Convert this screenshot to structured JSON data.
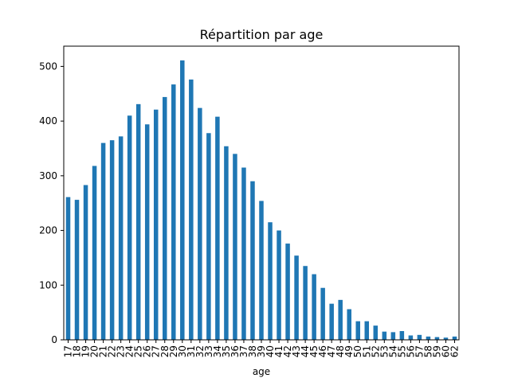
{
  "chart_data": {
    "type": "bar",
    "title": "Répartition par age",
    "xlabel": "age",
    "ylabel": "",
    "ylim": [
      0,
      537
    ],
    "yticks": [
      0,
      100,
      200,
      300,
      400,
      500
    ],
    "grid": false,
    "bar_color": "#1f77b4",
    "categories": [
      "17",
      "18",
      "19",
      "20",
      "21",
      "22",
      "23",
      "24",
      "25",
      "26",
      "27",
      "28",
      "29",
      "30",
      "31",
      "32",
      "33",
      "34",
      "35",
      "36",
      "37",
      "38",
      "39",
      "40",
      "41",
      "42",
      "43",
      "44",
      "45",
      "46",
      "47",
      "48",
      "49",
      "50",
      "51",
      "52",
      "53",
      "54",
      "55",
      "56",
      "57",
      "58",
      "59",
      "60",
      "62"
    ],
    "values": [
      261,
      256,
      283,
      318,
      360,
      365,
      372,
      410,
      431,
      394,
      421,
      444,
      467,
      511,
      476,
      424,
      378,
      408,
      354,
      340,
      315,
      290,
      254,
      215,
      200,
      176,
      154,
      135,
      120,
      95,
      66,
      73,
      56,
      34,
      34,
      26,
      15,
      14,
      16,
      8,
      9,
      6,
      5,
      4,
      6
    ]
  }
}
